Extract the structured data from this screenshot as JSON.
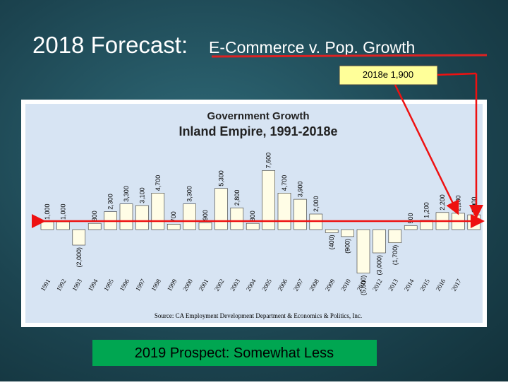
{
  "slide": {
    "title_main": "2018 Forecast:",
    "title_rest": "E-Commerce v. Pop. Growth",
    "callout": "2018e 1,900",
    "prospect": "2019 Prospect:  Somewhat Less"
  },
  "chart_data": {
    "type": "bar",
    "title": "Government Growth",
    "subtitle": "Inland Empire, 1991-2018e",
    "source": "Source: CA Employment Development Department & Economics & Politics, Inc.",
    "color": "#fffde6",
    "categories": [
      "1991",
      "1992",
      "1993",
      "1994",
      "1995",
      "1996",
      "1997",
      "1998",
      "1999",
      "2000",
      "2001",
      "2002",
      "2003",
      "2004",
      "2005",
      "2006",
      "2007",
      "2008",
      "2009",
      "2010",
      "2011",
      "2012",
      "2013",
      "2014",
      "2015",
      "2016",
      "2017",
      null
    ],
    "values": [
      1000,
      1000,
      -2000,
      800,
      2300,
      3300,
      3100,
      4700,
      700,
      3300,
      900,
      5300,
      2800,
      800,
      7600,
      4700,
      3900,
      2000,
      -400,
      -900,
      -5600,
      -3000,
      -1700,
      500,
      1200,
      2200,
      2100,
      1900
    ],
    "value_labels": [
      "1,000",
      "1,000",
      "(2,000)",
      "800",
      "2,300",
      "3,300",
      "3,100",
      "4,700",
      "700",
      "3,300",
      "900",
      "5,300",
      "2,800",
      "800",
      "7,600",
      "4,700",
      "3,900",
      "2,000",
      "(400)",
      "(900)",
      "(5,600)",
      "(3,000)",
      "(1,700)",
      "500",
      "1,200",
      "2,200",
      "2,100",
      "1,900"
    ]
  }
}
